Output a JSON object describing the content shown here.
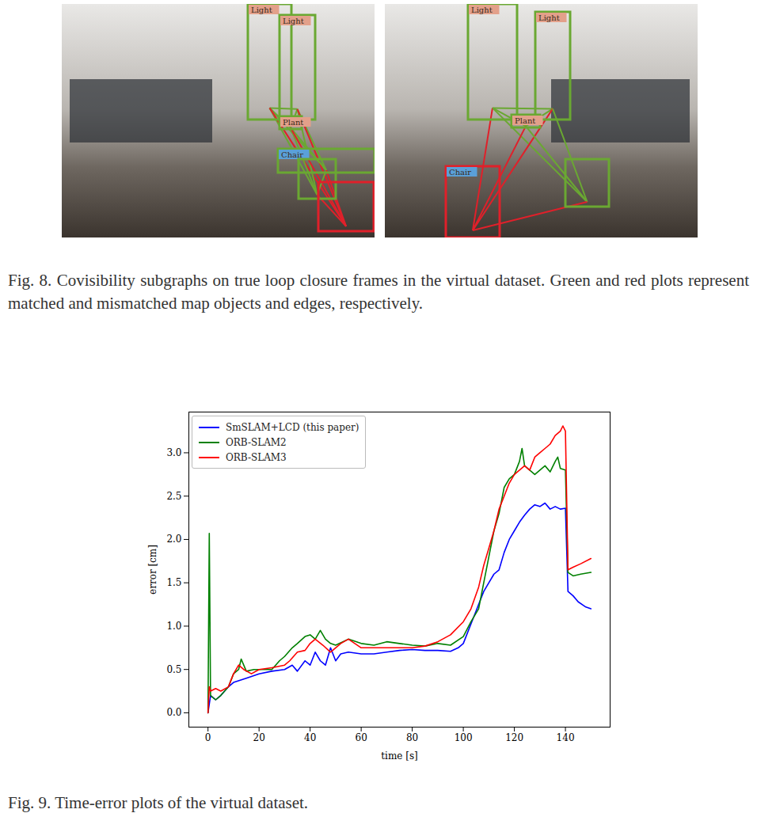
{
  "figure_8": {
    "caption": "Fig. 8. Covisibility subgraphs on true loop closure frames in the virtual dataset. Green and red plots represent matched and mismatched map objects and edges, respectively.",
    "panels": [
      {
        "objects": [
          {
            "label": "Light",
            "color": "green"
          },
          {
            "label": "Light",
            "color": "green"
          },
          {
            "label": "Plant",
            "color": "green"
          },
          {
            "label": "Chair",
            "color": "green"
          },
          {
            "label": null,
            "color": "green"
          },
          {
            "label": null,
            "color": "red"
          }
        ]
      },
      {
        "objects": [
          {
            "label": "Light",
            "color": "green"
          },
          {
            "label": "Light",
            "color": "green"
          },
          {
            "label": "Plant",
            "color": "green"
          },
          {
            "label": "Chair",
            "color": "red"
          },
          {
            "label": null,
            "color": "green"
          }
        ]
      }
    ]
  },
  "chart_data": {
    "type": "line",
    "caption": "Fig. 9. Time-error plots of the virtual dataset.",
    "x_label": "time [s]",
    "y_label": "error [cm]",
    "xlim": [
      -7.5,
      157.5
    ],
    "ylim": [
      -0.165,
      3.47
    ],
    "xticks": [
      0,
      20,
      40,
      60,
      80,
      100,
      120,
      140
    ],
    "yticks": [
      {
        "value": 0,
        "label": "0.0"
      },
      {
        "value": 0.5,
        "label": "0.5"
      },
      {
        "value": 1,
        "label": "1.0"
      },
      {
        "value": 1.5,
        "label": "1.5"
      },
      {
        "value": 2,
        "label": "2.0"
      },
      {
        "value": 2.5,
        "label": "2.5"
      },
      {
        "value": 3,
        "label": "3.0"
      }
    ],
    "grid": false,
    "legend": "upper left",
    "series": [
      {
        "name": "SmSLAM+LCD (this paper)",
        "color": "#0000ff",
        "x": [
          0,
          1,
          3,
          5,
          8,
          10,
          15,
          20,
          25,
          30,
          33,
          35,
          38,
          40,
          42,
          44,
          46,
          48,
          50,
          52,
          55,
          60,
          65,
          70,
          75,
          80,
          85,
          90,
          95,
          98,
          100,
          102,
          104,
          106,
          108,
          110,
          112,
          114,
          116,
          118,
          120,
          122,
          124,
          126,
          128,
          130,
          132,
          134,
          136,
          138,
          140,
          141,
          143,
          145,
          148,
          150
        ],
        "values": [
          0,
          0.2,
          0.15,
          0.2,
          0.3,
          0.35,
          0.4,
          0.45,
          0.48,
          0.5,
          0.55,
          0.48,
          0.6,
          0.55,
          0.7,
          0.6,
          0.55,
          0.75,
          0.6,
          0.68,
          0.7,
          0.68,
          0.68,
          0.7,
          0.72,
          0.73,
          0.72,
          0.72,
          0.71,
          0.75,
          0.8,
          0.95,
          1.1,
          1.25,
          1.4,
          1.5,
          1.6,
          1.65,
          1.85,
          2.0,
          2.1,
          2.2,
          2.28,
          2.35,
          2.4,
          2.38,
          2.42,
          2.35,
          2.38,
          2.35,
          2.36,
          1.4,
          1.35,
          1.28,
          1.22,
          1.2
        ]
      },
      {
        "name": "ORB-SLAM2",
        "color": "#008000",
        "x": [
          0,
          0.5,
          1,
          3,
          5,
          8,
          10,
          12,
          13,
          15,
          18,
          20,
          25,
          28,
          30,
          33,
          35,
          38,
          40,
          42,
          44,
          46,
          48,
          50,
          55,
          60,
          65,
          70,
          75,
          80,
          85,
          90,
          95,
          100,
          103,
          106,
          108,
          110,
          112,
          114,
          116,
          118,
          120,
          122,
          123,
          124,
          126,
          128,
          130,
          132,
          134,
          136,
          137,
          138,
          140,
          141,
          143,
          146,
          150
        ],
        "values": [
          0,
          2.07,
          0.2,
          0.15,
          0.2,
          0.3,
          0.45,
          0.5,
          0.62,
          0.48,
          0.5,
          0.5,
          0.5,
          0.6,
          0.65,
          0.75,
          0.8,
          0.88,
          0.9,
          0.85,
          0.95,
          0.85,
          0.8,
          0.78,
          0.85,
          0.8,
          0.78,
          0.82,
          0.8,
          0.78,
          0.77,
          0.8,
          0.78,
          0.88,
          1.05,
          1.2,
          1.5,
          1.8,
          2.1,
          2.3,
          2.6,
          2.7,
          2.75,
          2.9,
          3.05,
          2.85,
          2.8,
          2.75,
          2.8,
          2.85,
          2.78,
          2.9,
          2.95,
          2.82,
          2.8,
          1.62,
          1.58,
          1.6,
          1.62
        ]
      },
      {
        "name": "ORB-SLAM3",
        "color": "#ff0000",
        "x": [
          0,
          0.5,
          1,
          3,
          5,
          8,
          10,
          12,
          14,
          17,
          20,
          25,
          30,
          32,
          35,
          38,
          40,
          42,
          45,
          48,
          52,
          55,
          60,
          65,
          70,
          75,
          80,
          85,
          90,
          95,
          100,
          103,
          106,
          108,
          110,
          112,
          114,
          116,
          118,
          120,
          122,
          124,
          126,
          128,
          130,
          132,
          134,
          136,
          138,
          139,
          140,
          141,
          143,
          146,
          150
        ],
        "values": [
          0,
          0.3,
          0.25,
          0.28,
          0.25,
          0.3,
          0.45,
          0.55,
          0.5,
          0.45,
          0.5,
          0.52,
          0.55,
          0.6,
          0.7,
          0.72,
          0.8,
          0.85,
          0.78,
          0.7,
          0.8,
          0.85,
          0.75,
          0.75,
          0.75,
          0.75,
          0.75,
          0.77,
          0.82,
          0.9,
          1.05,
          1.2,
          1.45,
          1.7,
          1.9,
          2.1,
          2.35,
          2.5,
          2.65,
          2.75,
          2.8,
          2.85,
          2.8,
          2.95,
          3.0,
          3.05,
          3.1,
          3.2,
          3.25,
          3.31,
          3.25,
          1.65,
          1.68,
          1.72,
          1.78
        ]
      }
    ]
  }
}
